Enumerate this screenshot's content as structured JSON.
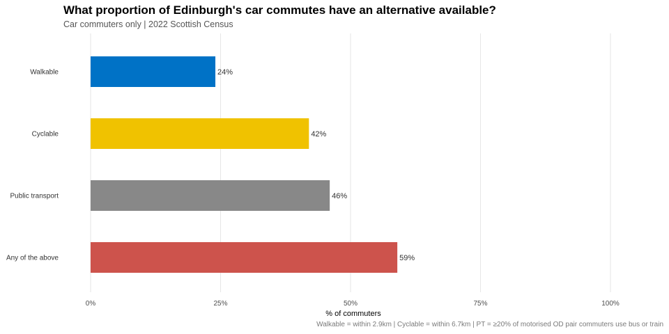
{
  "chart_data": {
    "type": "bar",
    "orientation": "horizontal",
    "title": "What proportion of Edinburgh's car commutes have an alternative available?",
    "subtitle": "Car commuters only | 2022 Scottish Census",
    "caption": "Walkable = within 2.9km | Cyclable = within 6.7km | PT = ≥20% of motorised OD pair commuters use bus or train",
    "categories": [
      "Walkable",
      "Cyclable",
      "Public transport",
      "Any of the above"
    ],
    "values": [
      24,
      42,
      46,
      59
    ],
    "value_labels": [
      "24%",
      "42%",
      "46%",
      "59%"
    ],
    "colors": [
      "#0072c6",
      "#f0c200",
      "#888888",
      "#cd534c"
    ],
    "xlabel": "% of commuters",
    "ylabel": "",
    "xlim": [
      0,
      100
    ],
    "xticks": [
      0,
      25,
      50,
      75,
      100
    ],
    "xtick_labels": [
      "0%",
      "25%",
      "50%",
      "75%",
      "100%"
    ],
    "grid": true,
    "legend": "none"
  }
}
